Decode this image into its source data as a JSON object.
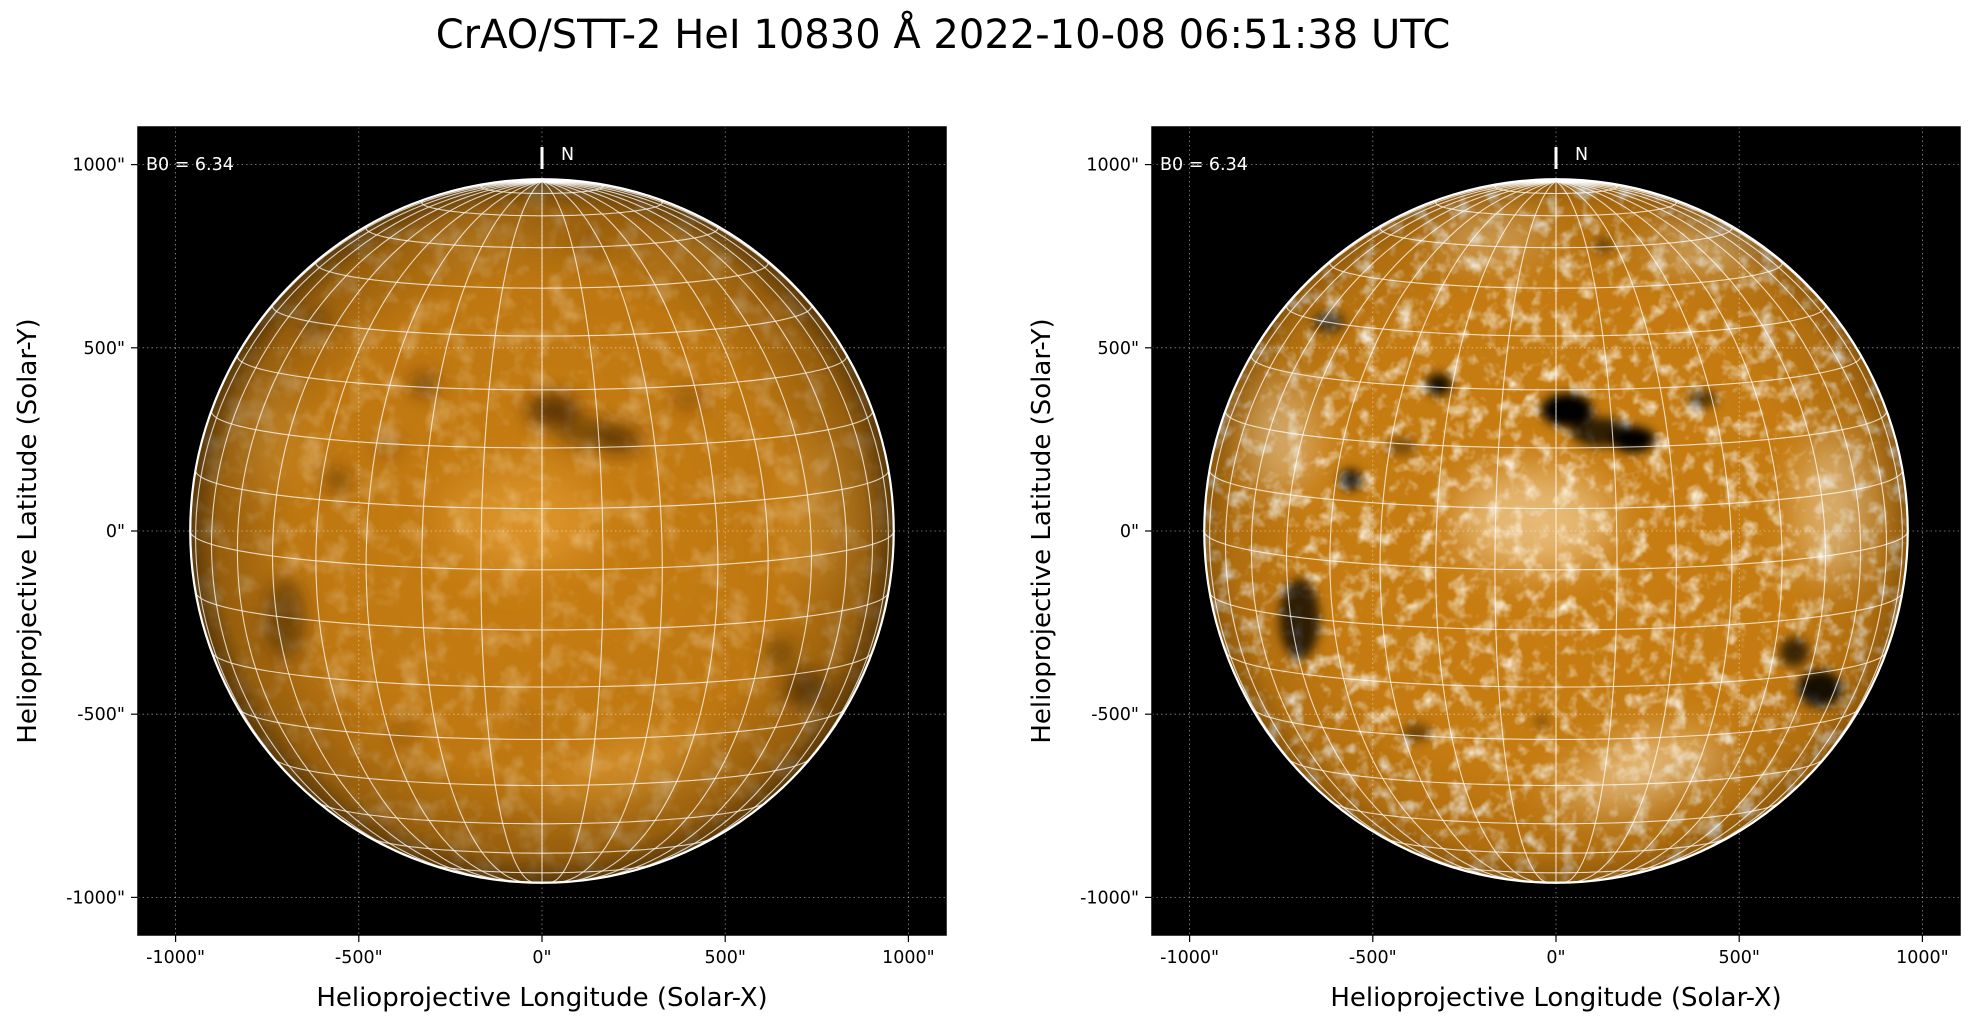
{
  "title": "CrAO/STT-2 HeI 10830 Å 2022-10-08 06:51:38 UTC",
  "colors": {
    "background": "#000000",
    "disk_base": "#c97e12",
    "disk_light": "#efae45",
    "disk_dark": "#3a1e02",
    "grid": "#ffffff",
    "limb": "#ffffff"
  },
  "panels": [
    {
      "name": "left",
      "contrast": "low",
      "xlabel": "Helioprojective Longitude (Solar-X)",
      "ylabel": "Helioprojective Latitude (Solar-Y)",
      "b0_label": "B0 = 6.34",
      "north_label": "N",
      "xticks": [
        "-1000\"",
        "-500\"",
        "0\"",
        "500\"",
        "1000\""
      ],
      "yticks": [
        "1000\"",
        "500\"",
        "0\"",
        "-500\"",
        "-1000\""
      ]
    },
    {
      "name": "right",
      "contrast": "high",
      "xlabel": "Helioprojective Longitude (Solar-X)",
      "ylabel": "Helioprojective Latitude (Solar-Y)",
      "b0_label": "B0 = 6.34",
      "north_label": "N",
      "xticks": [
        "-1000\"",
        "-500\"",
        "0\"",
        "500\"",
        "1000\""
      ],
      "yticks": [
        "1000\"",
        "500\"",
        "0\"",
        "-500\"",
        "-1000\""
      ]
    }
  ]
}
